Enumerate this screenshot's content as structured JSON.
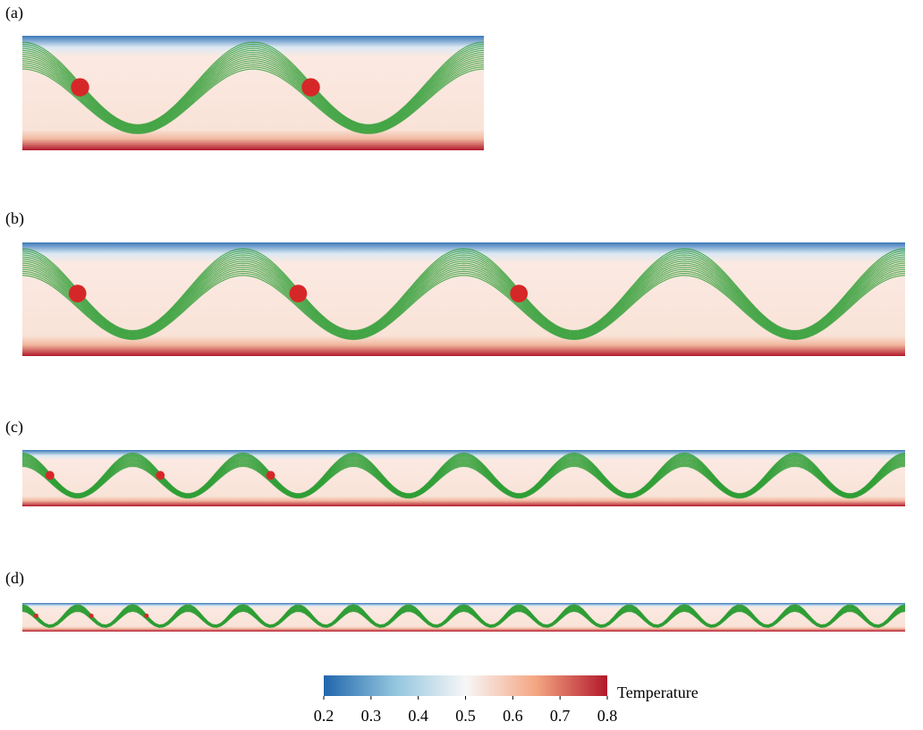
{
  "panels": [
    {
      "label": "(a)"
    },
    {
      "label": "(b)"
    },
    {
      "label": "(c)"
    },
    {
      "label": "(d)"
    }
  ],
  "colorbar": {
    "label": "Temperature",
    "range": [
      0.2,
      0.8
    ],
    "ticks": [
      0.2,
      0.3,
      0.4,
      0.5,
      0.6,
      0.7,
      0.8
    ]
  }
}
